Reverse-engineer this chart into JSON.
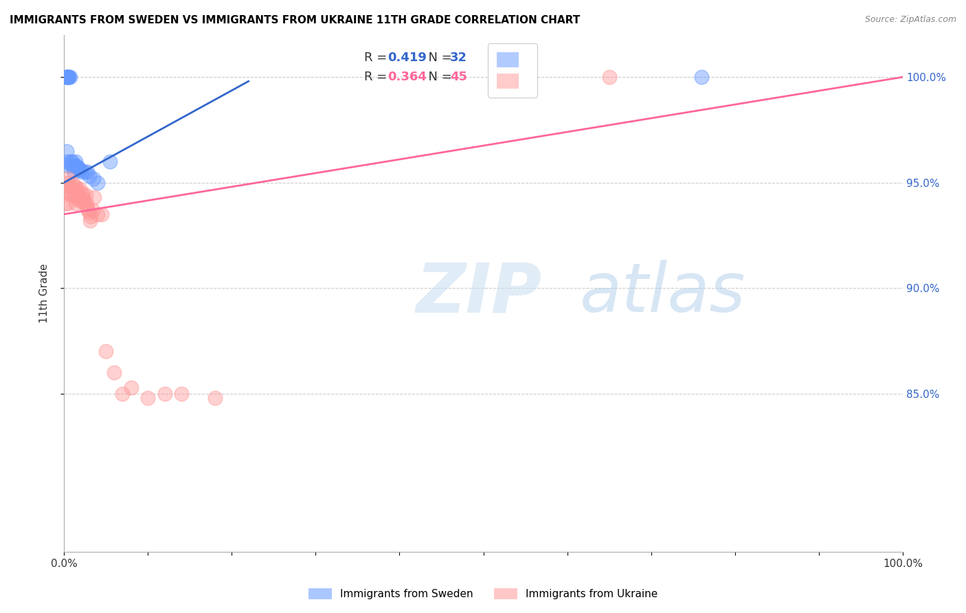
{
  "title": "IMMIGRANTS FROM SWEDEN VS IMMIGRANTS FROM UKRAINE 11TH GRADE CORRELATION CHART",
  "source": "Source: ZipAtlas.com",
  "ylabel": "11th Grade",
  "sweden_R": 0.419,
  "sweden_N": 32,
  "ukraine_R": 0.364,
  "ukraine_N": 45,
  "sweden_color": "#6699FF",
  "ukraine_color": "#FF9999",
  "sweden_line_color": "#3366CC",
  "ukraine_line_color": "#FF6699",
  "legend_label_sweden": "Immigrants from Sweden",
  "legend_label_ukraine": "Immigrants from Ukraine",
  "xlim": [
    0.0,
    1.0
  ],
  "ylim": [
    0.775,
    1.02
  ],
  "ytick_positions": [
    0.85,
    0.9,
    0.95,
    1.0
  ],
  "ytick_labels": [
    "85.0%",
    "90.0%",
    "95.0%",
    "100.0%"
  ],
  "xtick_positions": [
    0.0,
    0.1,
    0.2,
    0.3,
    0.4,
    0.5,
    0.6,
    0.7,
    0.8,
    0.9,
    1.0
  ],
  "sweden_x": [
    0.003,
    0.003,
    0.003,
    0.004,
    0.005,
    0.005,
    0.006,
    0.006,
    0.007,
    0.008,
    0.009,
    0.01,
    0.01,
    0.012,
    0.013,
    0.014,
    0.015,
    0.016,
    0.017,
    0.018,
    0.02,
    0.022,
    0.025,
    0.028,
    0.03,
    0.035,
    0.04,
    0.055,
    0.76,
    0.003,
    0.004,
    0.005
  ],
  "sweden_y": [
    1.0,
    1.0,
    1.0,
    1.0,
    1.0,
    1.0,
    1.0,
    1.0,
    1.0,
    0.96,
    0.958,
    0.96,
    0.958,
    0.955,
    0.958,
    0.96,
    0.958,
    0.957,
    0.957,
    0.956,
    0.956,
    0.955,
    0.955,
    0.955,
    0.953,
    0.952,
    0.95,
    0.96,
    1.0,
    0.965,
    0.96,
    0.958
  ],
  "ukraine_x": [
    0.002,
    0.003,
    0.004,
    0.005,
    0.006,
    0.007,
    0.008,
    0.009,
    0.01,
    0.011,
    0.012,
    0.013,
    0.014,
    0.015,
    0.016,
    0.017,
    0.018,
    0.019,
    0.02,
    0.021,
    0.022,
    0.023,
    0.024,
    0.025,
    0.026,
    0.027,
    0.028,
    0.029,
    0.03,
    0.031,
    0.032,
    0.034,
    0.036,
    0.04,
    0.045,
    0.05,
    0.06,
    0.07,
    0.08,
    0.1,
    0.12,
    0.14,
    0.18,
    0.65,
    0.005
  ],
  "ukraine_y": [
    0.94,
    0.945,
    0.95,
    0.952,
    0.945,
    0.948,
    0.948,
    0.944,
    0.95,
    0.946,
    0.944,
    0.948,
    0.94,
    0.948,
    0.946,
    0.943,
    0.942,
    0.947,
    0.941,
    0.944,
    0.945,
    0.941,
    0.942,
    0.94,
    0.944,
    0.94,
    0.938,
    0.937,
    0.936,
    0.932,
    0.934,
    0.937,
    0.943,
    0.935,
    0.935,
    0.87,
    0.86,
    0.85,
    0.853,
    0.848,
    0.85,
    0.85,
    0.848,
    1.0,
    0.94
  ],
  "sweden_line_x": [
    0.0,
    0.22
  ],
  "sweden_line_y_start": 0.95,
  "sweden_line_y_end": 0.998,
  "ukraine_line_x": [
    0.0,
    1.0
  ],
  "ukraine_line_y_start": 0.935,
  "ukraine_line_y_end": 1.0
}
